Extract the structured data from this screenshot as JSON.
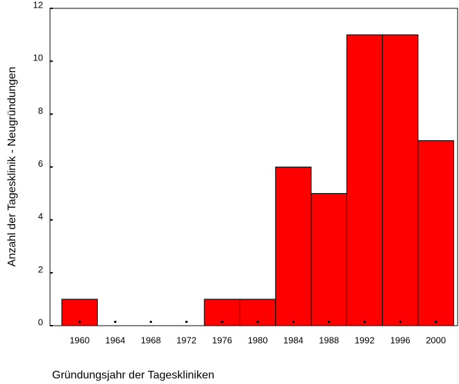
{
  "chart_data": {
    "type": "bar",
    "x_label": "Gründungsjahr der Tageskliniken",
    "y_label": "Anzahl der Tagesklinik - Neugründungen",
    "categories": [
      "1960",
      "1964",
      "1968",
      "1972",
      "1976",
      "1980",
      "1984",
      "1988",
      "1992",
      "1996",
      "2000"
    ],
    "values": [
      1,
      0,
      0,
      0,
      1,
      1,
      6,
      5,
      11,
      11,
      7
    ],
    "color": "#ff0000",
    "ylim": [
      0,
      12
    ],
    "yticks": [
      0,
      2,
      4,
      6,
      8,
      10,
      12
    ]
  }
}
